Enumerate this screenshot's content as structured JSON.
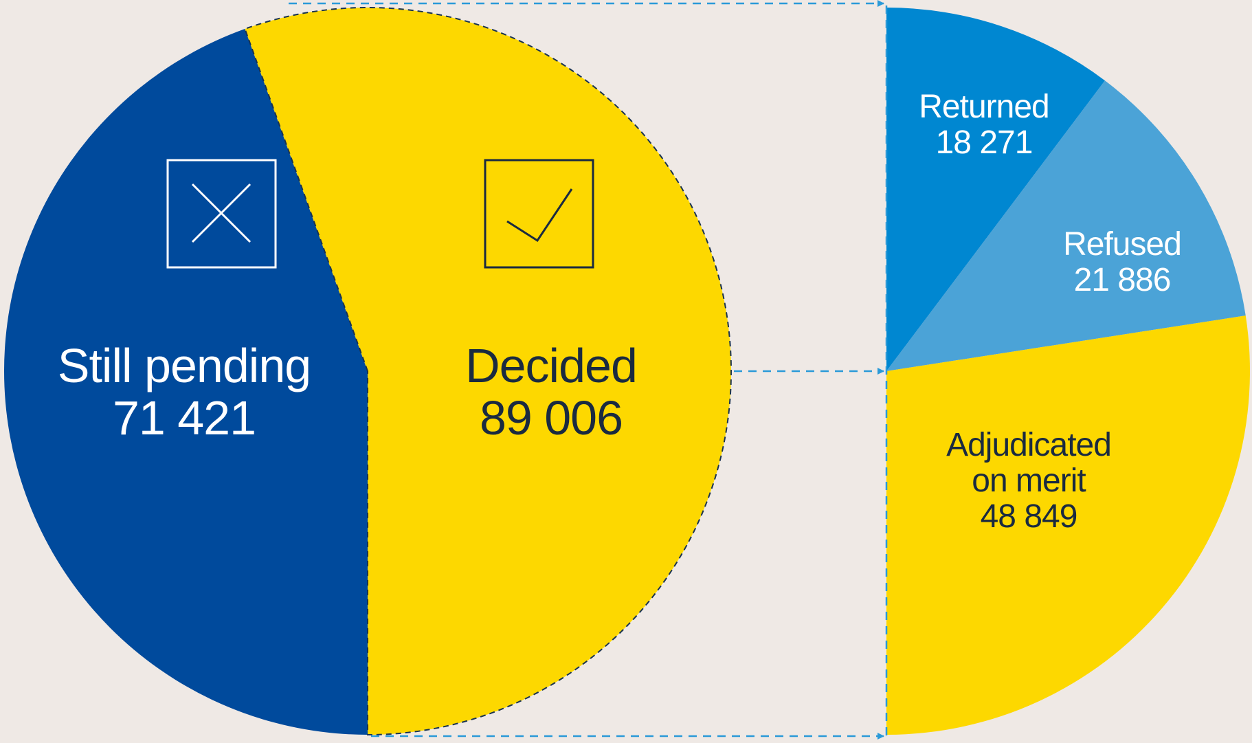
{
  "chart_data": [
    {
      "type": "pie",
      "categories": [
        "Still pending",
        "Decided"
      ],
      "values": [
        71421,
        89006
      ],
      "value_labels": [
        "71 421",
        "89 006"
      ],
      "colors": [
        "#004a9c",
        "#fdd800"
      ]
    },
    {
      "type": "half-pie",
      "categories": [
        "Returned",
        "Refused",
        "Adjudicated on merit"
      ],
      "values": [
        18271,
        21886,
        48849
      ],
      "value_labels": [
        "18 271",
        "21 886",
        "48 849"
      ],
      "colors": [
        "#0087d1",
        "#4ba3d7",
        "#fdd800"
      ]
    }
  ]
}
